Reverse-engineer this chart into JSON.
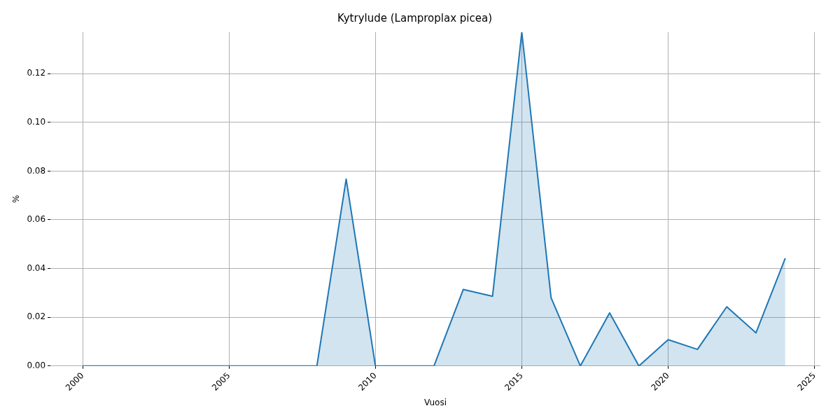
{
  "chart_data": {
    "type": "area",
    "title": "Kytrylude (Lamproplax picea)",
    "xlabel": "Vuosi",
    "ylabel": "%",
    "x": [
      2000,
      2001,
      2002,
      2003,
      2004,
      2005,
      2006,
      2007,
      2008,
      2009,
      2010,
      2011,
      2012,
      2013,
      2014,
      2015,
      2016,
      2017,
      2018,
      2019,
      2020,
      2021,
      2022,
      2023,
      2024
    ],
    "series": [
      {
        "color": "#1f77b4",
        "values": [
          0,
          0,
          0,
          0,
          0,
          0,
          0,
          0,
          0,
          0.0767,
          0,
          0,
          0,
          0.0314,
          0.0286,
          0.137,
          0.028,
          0,
          0.0218,
          0,
          0.0108,
          0.0068,
          0.0243,
          0.0136,
          0.0442
        ]
      }
    ],
    "xlim": [
      1998.9,
      2025.2
    ],
    "xticks": [
      2000,
      2005,
      2010,
      2015,
      2020,
      2025
    ],
    "ylim": [
      0,
      0.137
    ],
    "yticks": [
      {
        "value": 0,
        "label": "0.00"
      },
      0.02,
      0.04,
      0.06,
      0.08,
      {
        "value": 0.1,
        "label": "0.10"
      },
      0.12
    ],
    "grid": true,
    "legend": false
  }
}
